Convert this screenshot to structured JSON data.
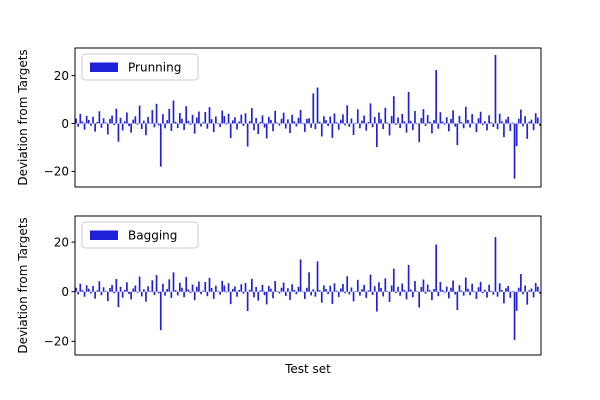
{
  "chart_data": [
    {
      "type": "bar",
      "xlabel": "",
      "ylabel": "Deviation from Targets",
      "ylim": [
        -26.5,
        31.5
      ],
      "yticks": [
        20,
        0,
        -20
      ],
      "grid": false,
      "legend_position": "top-left",
      "series": [
        {
          "name": "Prunning",
          "color": "#2121dc",
          "values": [
            2.1,
            -1.4,
            4.0,
            0.8,
            -2.6,
            3.2,
            1.5,
            -0.9,
            2.8,
            -3.4,
            0.6,
            5.1,
            -1.8,
            2.2,
            0.4,
            -4.6,
            1.9,
            3.3,
            -0.7,
            6.2,
            -7.6,
            2.4,
            -2.9,
            0.9,
            4.6,
            -1.1,
            -3.8,
            1.6,
            3.0,
            -0.5,
            7.5,
            -2.3,
            1.2,
            -4.9,
            2.7,
            0.3,
            5.6,
            -1.6,
            8.2,
            -0.8,
            -18.0,
            3.9,
            -2.0,
            1.4,
            6.1,
            -3.1,
            9.6,
            0.7,
            -1.9,
            4.4,
            2.0,
            -2.7,
            7.2,
            1.1,
            -0.6,
            3.6,
            -4.2,
            2.5,
            5.0,
            -1.3,
            0.5,
            4.8,
            -2.2,
            6.8,
            1.8,
            -3.6,
            2.9,
            0.2,
            -1.5,
            5.4,
            3.1,
            -0.4,
            4.1,
            -6.1,
            1.3,
            2.6,
            -2.5,
            0.8,
            3.7,
            -1.0,
            4.3,
            -9.6,
            1.0,
            6.4,
            -2.8,
            2.3,
            -4.4,
            0.6,
            3.4,
            -1.7,
            -6.2,
            2.8,
            1.5,
            -3.2,
            5.3,
            0.4,
            -0.9,
            2.0,
            4.5,
            -2.1,
            1.7,
            -4.0,
            3.6,
            0.9,
            -1.2,
            2.4,
            5.7,
            -0.3,
            -3.5,
            1.9,
            2.2,
            -1.8,
            12.6,
            -2.4,
            15.0,
            0.7,
            -5.4,
            3.0,
            1.4,
            -1.1,
            2.9,
            -6.0,
            4.2,
            0.5,
            -2.6,
            1.6,
            3.8,
            -0.8,
            7.6,
            -1.4,
            2.1,
            -4.8,
            0.3,
            5.9,
            -2.0,
            1.2,
            3.3,
            -3.0,
            0.6,
            8.4,
            -1.6,
            2.7,
            -9.8,
            4.6,
            1.8,
            -2.3,
            6.6,
            0.4,
            -5.0,
            3.1,
            11.4,
            -0.6,
            2.5,
            -1.9,
            4.0,
            0.9,
            -3.8,
            13.2,
            1.1,
            -2.7,
            5.2,
            0.2,
            -7.8,
            2.3,
            6.0,
            -1.0,
            3.5,
            0.7,
            -4.1,
            1.4,
            22.3,
            -2.2,
            4.7,
            0.8,
            -0.5,
            2.6,
            -3.3,
            1.9,
            5.5,
            -1.3,
            -9.0,
            3.2,
            0.6,
            -2.0,
            7.0,
            1.5,
            -1.7,
            3.9,
            0.3,
            -3.6,
            2.2,
            4.9,
            -0.7,
            1.0,
            -2.9,
            3.4,
            0.5,
            -1.5,
            28.6,
            -2.4,
            4.1,
            0.9,
            -5.7,
            1.7,
            2.8,
            -3.1,
            0.4,
            -23.0,
            -9.4,
            2.0,
            5.8,
            -1.2,
            3.0,
            -6.4,
            0.8,
            1.6,
            -2.8,
            4.3,
            2.5,
            -1.0
          ]
        }
      ]
    },
    {
      "type": "bar",
      "xlabel": "Test set",
      "ylabel": "Deviation from Targets",
      "ylim": [
        -25.5,
        30.5
      ],
      "yticks": [
        20,
        0,
        -20
      ],
      "grid": false,
      "legend_position": "top-left",
      "series": [
        {
          "name": "Bagging",
          "color": "#2121dc",
          "values": [
            1.6,
            -1.1,
            3.2,
            0.6,
            -2.0,
            2.6,
            1.2,
            -0.7,
            2.3,
            -2.8,
            0.5,
            4.2,
            -1.4,
            1.8,
            0.3,
            -3.8,
            1.5,
            2.7,
            -0.6,
            5.1,
            -6.2,
            2.0,
            -2.4,
            0.7,
            3.8,
            -0.9,
            -3.1,
            1.3,
            2.5,
            -0.4,
            6.1,
            -1.9,
            1.0,
            -4.0,
            2.2,
            0.2,
            4.6,
            -1.3,
            6.7,
            -0.6,
            -15.5,
            3.2,
            -1.6,
            1.1,
            5.0,
            -2.5,
            7.8,
            0.6,
            -1.5,
            3.6,
            1.6,
            -2.2,
            5.9,
            0.9,
            -0.5,
            2.9,
            -3.4,
            2.0,
            4.1,
            -1.0,
            0.4,
            3.9,
            -1.8,
            5.6,
            1.5,
            -2.9,
            2.4,
            0.2,
            -1.2,
            4.4,
            2.5,
            -0.3,
            3.4,
            -5.0,
            1.1,
            2.1,
            -2.0,
            0.7,
            3.0,
            -0.8,
            3.5,
            -7.8,
            0.8,
            5.2,
            -2.3,
            1.9,
            -3.6,
            0.5,
            2.8,
            -1.4,
            -5.1,
            2.3,
            1.2,
            -2.6,
            4.3,
            0.3,
            -0.7,
            1.6,
            3.7,
            -1.7,
            1.4,
            -3.3,
            3.0,
            0.7,
            -1.0,
            2.0,
            13.0,
            -0.2,
            -2.9,
            1.6,
            7.8,
            -1.5,
            1.0,
            -2.0,
            12.2,
            0.6,
            -4.4,
            2.5,
            1.1,
            -0.9,
            2.4,
            -4.9,
            3.4,
            0.4,
            -2.1,
            1.3,
            3.1,
            -0.6,
            6.2,
            -1.1,
            1.7,
            -3.9,
            0.2,
            4.8,
            -1.6,
            1.0,
            2.7,
            -2.5,
            0.5,
            6.9,
            -1.3,
            2.2,
            -8.0,
            3.8,
            1.5,
            -1.9,
            5.4,
            0.3,
            -4.1,
            2.5,
            9.3,
            -0.5,
            2.0,
            -1.6,
            3.3,
            0.7,
            -3.1,
            10.8,
            0.9,
            -2.2,
            4.3,
            0.2,
            -6.4,
            1.9,
            4.9,
            -0.8,
            2.9,
            0.6,
            -3.4,
            1.1,
            19.0,
            -1.8,
            3.9,
            0.7,
            -0.4,
            2.1,
            -2.7,
            1.6,
            4.5,
            -1.1,
            -7.4,
            2.6,
            0.5,
            -1.6,
            5.7,
            1.2,
            -1.4,
            3.2,
            0.2,
            -2.9,
            1.8,
            4.0,
            -0.6,
            0.8,
            -2.4,
            2.8,
            0.4,
            -1.2,
            22.0,
            -2.0,
            3.4,
            0.7,
            -4.7,
            1.4,
            2.3,
            -2.5,
            0.3,
            -19.5,
            -7.7,
            1.6,
            7.1,
            -1.0,
            2.5,
            -5.2,
            0.6,
            1.3,
            -2.3,
            3.5,
            2.0,
            -0.8
          ]
        }
      ]
    }
  ]
}
